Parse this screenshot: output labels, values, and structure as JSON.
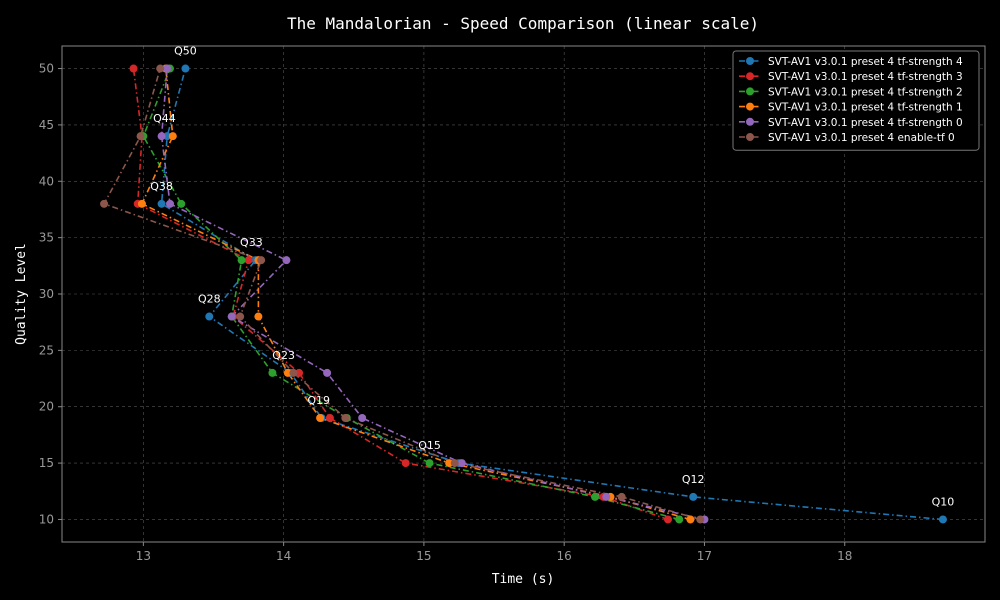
{
  "chart_data": {
    "type": "line",
    "title": "The Mandalorian - Speed Comparison (linear scale)",
    "xlabel": "Time (s)",
    "ylabel": "Quality Level",
    "xlim": [
      12.42,
      19.0
    ],
    "ylim": [
      8.0,
      52.0
    ],
    "xticks": [
      "13",
      "14",
      "15",
      "16",
      "17",
      "18"
    ],
    "yticks": [
      "10",
      "15",
      "20",
      "25",
      "30",
      "35",
      "40",
      "45",
      "50"
    ],
    "grid": true,
    "legend_position": "top-right",
    "series": [
      {
        "name": "SVT-AV1 v3.0.1 preset 4 tf-strength 4",
        "color": "#1f77b4",
        "points": [
          [
            18.7,
            10
          ],
          [
            16.92,
            12
          ],
          [
            15.25,
            15
          ],
          [
            14.27,
            19
          ],
          [
            14.05,
            23
          ],
          [
            13.47,
            28
          ],
          [
            13.8,
            33
          ],
          [
            13.13,
            38
          ],
          [
            13.17,
            44
          ],
          [
            13.3,
            50
          ]
        ]
      },
      {
        "name": "SVT-AV1 v3.0.1 preset 4 tf-strength 3",
        "color": "#d62728",
        "points": [
          [
            16.74,
            10
          ],
          [
            16.28,
            12
          ],
          [
            14.87,
            15
          ],
          [
            14.33,
            19
          ],
          [
            14.11,
            23
          ],
          [
            13.64,
            28
          ],
          [
            13.75,
            33
          ],
          [
            12.96,
            38
          ],
          [
            12.99,
            44
          ],
          [
            12.93,
            50
          ]
        ]
      },
      {
        "name": "SVT-AV1 v3.0.1 preset 4 tf-strength 2",
        "color": "#2ca02c",
        "points": [
          [
            16.82,
            10
          ],
          [
            16.22,
            12
          ],
          [
            15.04,
            15
          ],
          [
            14.45,
            19
          ],
          [
            13.92,
            23
          ],
          [
            13.63,
            28
          ],
          [
            13.7,
            33
          ],
          [
            13.27,
            38
          ],
          [
            13.0,
            44
          ],
          [
            13.19,
            50
          ]
        ]
      },
      {
        "name": "SVT-AV1 v3.0.1 preset 4 tf-strength 1",
        "color": "#ff7f0e",
        "points": [
          [
            16.9,
            10
          ],
          [
            16.33,
            12
          ],
          [
            15.18,
            15
          ],
          [
            14.26,
            19
          ],
          [
            14.03,
            23
          ],
          [
            13.82,
            28
          ],
          [
            13.82,
            33
          ],
          [
            12.99,
            38
          ],
          [
            13.21,
            44
          ],
          [
            13.16,
            50
          ]
        ]
      },
      {
        "name": "SVT-AV1 v3.0.1 preset 4 tf-strength 0",
        "color": "#9467bd",
        "points": [
          [
            17.0,
            10
          ],
          [
            16.3,
            12
          ],
          [
            15.27,
            15
          ],
          [
            14.56,
            19
          ],
          [
            14.31,
            23
          ],
          [
            13.63,
            28
          ],
          [
            14.02,
            33
          ],
          [
            13.19,
            38
          ],
          [
            13.13,
            44
          ],
          [
            13.17,
            50
          ]
        ]
      },
      {
        "name": "SVT-AV1 v3.0.1 preset 4 enable-tf 0",
        "color": "#8c564b",
        "points": [
          [
            16.97,
            10
          ],
          [
            16.41,
            12
          ],
          [
            15.22,
            15
          ],
          [
            14.44,
            19
          ],
          [
            14.07,
            23
          ],
          [
            13.69,
            28
          ],
          [
            13.84,
            33
          ],
          [
            12.72,
            38
          ],
          [
            12.98,
            44
          ],
          [
            13.12,
            50
          ]
        ]
      }
    ],
    "annotations": [
      {
        "text": "Q50",
        "x": 13.3,
        "y": 50
      },
      {
        "text": "Q44",
        "x": 13.15,
        "y": 44
      },
      {
        "text": "Q38",
        "x": 13.13,
        "y": 38
      },
      {
        "text": "Q33",
        "x": 13.77,
        "y": 33
      },
      {
        "text": "Q28",
        "x": 13.47,
        "y": 28
      },
      {
        "text": "Q23",
        "x": 14.0,
        "y": 23
      },
      {
        "text": "Q19",
        "x": 14.25,
        "y": 19
      },
      {
        "text": "Q15",
        "x": 15.04,
        "y": 15
      },
      {
        "text": "Q12",
        "x": 16.92,
        "y": 12
      },
      {
        "text": "Q10",
        "x": 18.7,
        "y": 10
      }
    ]
  }
}
